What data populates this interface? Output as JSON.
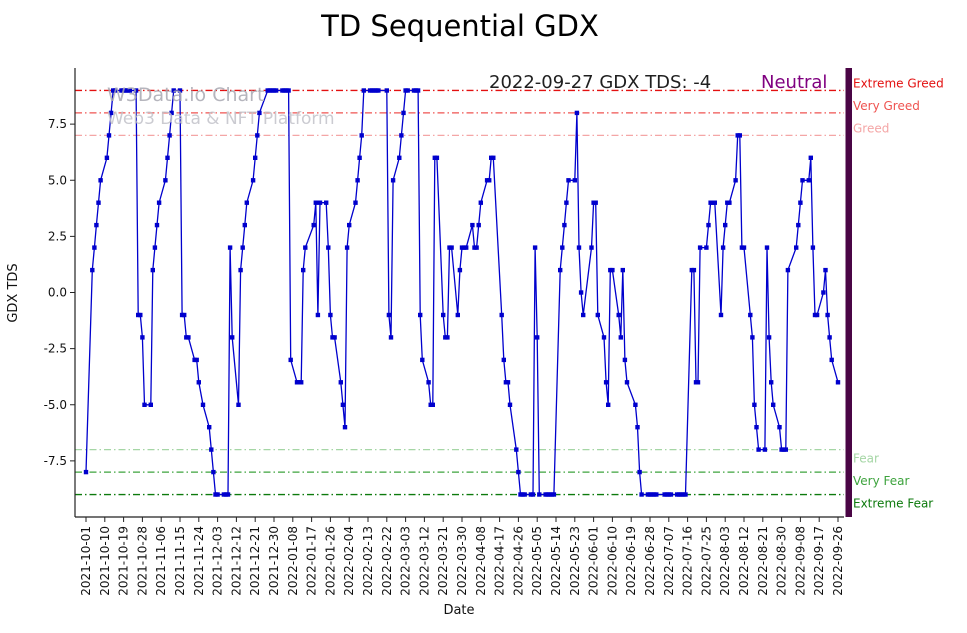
{
  "window": {
    "title": "TD Sequential GDX"
  },
  "annotation": {
    "text": "2022-09-27 GDX TDS: -4",
    "status": "Neutral",
    "status_color": "#800080"
  },
  "watermark": {
    "line1": "W3Data.io Chart",
    "line2": "Web3 Data & NFT Platform"
  },
  "chart_data": {
    "type": "line",
    "title": "TD Sequential GDX",
    "xlabel": "Date",
    "ylabel": "GDX TDS",
    "ylim": [
      -10,
      10
    ],
    "grid": false,
    "legend": "none",
    "line_color": "#0000cd",
    "marker": "square",
    "right_bar_color": "#4a0545",
    "yticks": [
      {
        "v": 7.5,
        "label": "7.5"
      },
      {
        "v": 5.0,
        "label": "5.0"
      },
      {
        "v": 2.5,
        "label": "2.5"
      },
      {
        "v": 0.0,
        "label": "0.0"
      },
      {
        "v": -2.5,
        "label": "-2.5"
      },
      {
        "v": -5.0,
        "label": "-5.0"
      },
      {
        "v": -7.5,
        "label": "-7.5"
      }
    ],
    "x_tick_labels": [
      "2021-10-01",
      "2021-10-10",
      "2021-10-19",
      "2021-10-28",
      "2021-11-06",
      "2021-11-15",
      "2021-11-24",
      "2021-12-03",
      "2021-12-12",
      "2021-12-21",
      "2021-12-30",
      "2022-01-08",
      "2022-01-17",
      "2022-01-26",
      "2022-02-04",
      "2022-02-13",
      "2022-02-22",
      "2022-03-03",
      "2022-03-12",
      "2022-03-21",
      "2022-03-30",
      "2022-04-08",
      "2022-04-17",
      "2022-04-26",
      "2022-05-05",
      "2022-05-14",
      "2022-05-23",
      "2022-06-01",
      "2022-06-10",
      "2022-06-19",
      "2022-06-28",
      "2022-07-07",
      "2022-07-16",
      "2022-07-25",
      "2022-08-03",
      "2022-08-12",
      "2022-08-21",
      "2022-08-30",
      "2022-09-08",
      "2022-09-17",
      "2022-09-26"
    ],
    "thresholds": [
      {
        "value": 9,
        "label": "Extreme Greed",
        "color": "#e31010"
      },
      {
        "value": 8,
        "label": "Very Greed",
        "color": "#ef5350"
      },
      {
        "value": 7,
        "label": "Greed",
        "color": "#f4a6a6"
      },
      {
        "value": -7,
        "label": "Fear",
        "color": "#a5d6a5"
      },
      {
        "value": -8,
        "label": "Very Fear",
        "color": "#3da33d"
      },
      {
        "value": -9,
        "label": "Extreme Fear",
        "color": "#0d7a0d"
      }
    ],
    "series": [
      {
        "name": "GDX TDS",
        "points": [
          [
            "2021-10-01",
            -8
          ],
          [
            "2021-10-04",
            1
          ],
          [
            "2021-10-05",
            2
          ],
          [
            "2021-10-06",
            3
          ],
          [
            "2021-10-07",
            4
          ],
          [
            "2021-10-08",
            5
          ],
          [
            "2021-10-11",
            6
          ],
          [
            "2021-10-12",
            7
          ],
          [
            "2021-10-13",
            8
          ],
          [
            "2021-10-14",
            9
          ],
          [
            "2021-10-15",
            9
          ],
          [
            "2021-10-18",
            9
          ],
          [
            "2021-10-19",
            9
          ],
          [
            "2021-10-20",
            9
          ],
          [
            "2021-10-21",
            9
          ],
          [
            "2021-10-22",
            9
          ],
          [
            "2021-10-25",
            9
          ],
          [
            "2021-10-26",
            -1
          ],
          [
            "2021-10-27",
            -1
          ],
          [
            "2021-10-28",
            -2
          ],
          [
            "2021-10-29",
            -5
          ],
          [
            "2021-11-01",
            -5
          ],
          [
            "2021-11-02",
            1
          ],
          [
            "2021-11-03",
            2
          ],
          [
            "2021-11-04",
            3
          ],
          [
            "2021-11-05",
            4
          ],
          [
            "2021-11-08",
            5
          ],
          [
            "2021-11-09",
            6
          ],
          [
            "2021-11-10",
            7
          ],
          [
            "2021-11-11",
            8
          ],
          [
            "2021-11-12",
            9
          ],
          [
            "2021-11-15",
            9
          ],
          [
            "2021-11-16",
            -1
          ],
          [
            "2021-11-17",
            -1
          ],
          [
            "2021-11-18",
            -2
          ],
          [
            "2021-11-19",
            -2
          ],
          [
            "2021-11-22",
            -3
          ],
          [
            "2021-11-23",
            -3
          ],
          [
            "2021-11-24",
            -4
          ],
          [
            "2021-11-26",
            -5
          ],
          [
            "2021-11-29",
            -6
          ],
          [
            "2021-11-30",
            -7
          ],
          [
            "2021-12-01",
            -8
          ],
          [
            "2021-12-02",
            -9
          ],
          [
            "2021-12-03",
            -9
          ],
          [
            "2021-12-06",
            -9
          ],
          [
            "2021-12-07",
            -9
          ],
          [
            "2021-12-08",
            -9
          ],
          [
            "2021-12-09",
            2
          ],
          [
            "2021-12-10",
            -2
          ],
          [
            "2021-12-13",
            -5
          ],
          [
            "2021-12-14",
            1
          ],
          [
            "2021-12-15",
            2
          ],
          [
            "2021-12-16",
            3
          ],
          [
            "2021-12-17",
            4
          ],
          [
            "2021-12-20",
            5
          ],
          [
            "2021-12-21",
            6
          ],
          [
            "2021-12-22",
            7
          ],
          [
            "2021-12-23",
            8
          ],
          [
            "2021-12-27",
            9
          ],
          [
            "2021-12-28",
            9
          ],
          [
            "2021-12-29",
            9
          ],
          [
            "2021-12-30",
            9
          ],
          [
            "2021-12-31",
            9
          ],
          [
            "2022-01-03",
            9
          ],
          [
            "2022-01-04",
            9
          ],
          [
            "2022-01-05",
            9
          ],
          [
            "2022-01-06",
            9
          ],
          [
            "2022-01-07",
            -3
          ],
          [
            "2022-01-10",
            -4
          ],
          [
            "2022-01-11",
            -4
          ],
          [
            "2022-01-12",
            -4
          ],
          [
            "2022-01-13",
            1
          ],
          [
            "2022-01-14",
            2
          ],
          [
            "2022-01-18",
            3
          ],
          [
            "2022-01-19",
            4
          ],
          [
            "2022-01-20",
            -1
          ],
          [
            "2022-01-21",
            4
          ],
          [
            "2022-01-24",
            4
          ],
          [
            "2022-01-25",
            2
          ],
          [
            "2022-01-26",
            -1
          ],
          [
            "2022-01-27",
            -2
          ],
          [
            "2022-01-28",
            -2
          ],
          [
            "2022-01-31",
            -4
          ],
          [
            "2022-02-01",
            -5
          ],
          [
            "2022-02-02",
            -6
          ],
          [
            "2022-02-03",
            2
          ],
          [
            "2022-02-04",
            3
          ],
          [
            "2022-02-07",
            4
          ],
          [
            "2022-02-08",
            5
          ],
          [
            "2022-02-09",
            6
          ],
          [
            "2022-02-10",
            7
          ],
          [
            "2022-02-11",
            9
          ],
          [
            "2022-02-14",
            9
          ],
          [
            "2022-02-15",
            9
          ],
          [
            "2022-02-16",
            9
          ],
          [
            "2022-02-17",
            9
          ],
          [
            "2022-02-18",
            9
          ],
          [
            "2022-02-22",
            9
          ],
          [
            "2022-02-23",
            -1
          ],
          [
            "2022-02-24",
            -2
          ],
          [
            "2022-02-25",
            5
          ],
          [
            "2022-02-28",
            6
          ],
          [
            "2022-03-01",
            7
          ],
          [
            "2022-03-02",
            8
          ],
          [
            "2022-03-03",
            9
          ],
          [
            "2022-03-04",
            9
          ],
          [
            "2022-03-07",
            9
          ],
          [
            "2022-03-08",
            9
          ],
          [
            "2022-03-09",
            9
          ],
          [
            "2022-03-10",
            -1
          ],
          [
            "2022-03-11",
            -3
          ],
          [
            "2022-03-14",
            -4
          ],
          [
            "2022-03-15",
            -5
          ],
          [
            "2022-03-16",
            -5
          ],
          [
            "2022-03-17",
            6
          ],
          [
            "2022-03-18",
            6
          ],
          [
            "2022-03-21",
            -1
          ],
          [
            "2022-03-22",
            -2
          ],
          [
            "2022-03-23",
            -2
          ],
          [
            "2022-03-24",
            2
          ],
          [
            "2022-03-25",
            2
          ],
          [
            "2022-03-28",
            -1
          ],
          [
            "2022-03-29",
            1
          ],
          [
            "2022-03-30",
            2
          ],
          [
            "2022-03-31",
            2
          ],
          [
            "2022-04-01",
            2
          ],
          [
            "2022-04-04",
            3
          ],
          [
            "2022-04-05",
            2
          ],
          [
            "2022-04-06",
            2
          ],
          [
            "2022-04-07",
            3
          ],
          [
            "2022-04-08",
            4
          ],
          [
            "2022-04-11",
            5
          ],
          [
            "2022-04-12",
            5
          ],
          [
            "2022-04-13",
            6
          ],
          [
            "2022-04-14",
            6
          ],
          [
            "2022-04-18",
            -1
          ],
          [
            "2022-04-19",
            -3
          ],
          [
            "2022-04-20",
            -4
          ],
          [
            "2022-04-21",
            -4
          ],
          [
            "2022-04-22",
            -5
          ],
          [
            "2022-04-25",
            -7
          ],
          [
            "2022-04-26",
            -8
          ],
          [
            "2022-04-27",
            -9
          ],
          [
            "2022-04-28",
            -9
          ],
          [
            "2022-04-29",
            -9
          ],
          [
            "2022-05-02",
            -9
          ],
          [
            "2022-05-03",
            -9
          ],
          [
            "2022-05-04",
            2
          ],
          [
            "2022-05-05",
            -2
          ],
          [
            "2022-05-06",
            -9
          ],
          [
            "2022-05-09",
            -9
          ],
          [
            "2022-05-10",
            -9
          ],
          [
            "2022-05-11",
            -9
          ],
          [
            "2022-05-12",
            -9
          ],
          [
            "2022-05-13",
            -9
          ],
          [
            "2022-05-16",
            1
          ],
          [
            "2022-05-17",
            2
          ],
          [
            "2022-05-18",
            3
          ],
          [
            "2022-05-19",
            4
          ],
          [
            "2022-05-20",
            5
          ],
          [
            "2022-05-23",
            5
          ],
          [
            "2022-05-24",
            8
          ],
          [
            "2022-05-25",
            2
          ],
          [
            "2022-05-26",
            0
          ],
          [
            "2022-05-27",
            -1
          ],
          [
            "2022-05-31",
            2
          ],
          [
            "2022-06-01",
            4
          ],
          [
            "2022-06-02",
            4
          ],
          [
            "2022-06-03",
            -1
          ],
          [
            "2022-06-06",
            -2
          ],
          [
            "2022-06-07",
            -4
          ],
          [
            "2022-06-08",
            -5
          ],
          [
            "2022-06-09",
            1
          ],
          [
            "2022-06-10",
            1
          ],
          [
            "2022-06-13",
            -1
          ],
          [
            "2022-06-14",
            -2
          ],
          [
            "2022-06-15",
            1
          ],
          [
            "2022-06-16",
            -3
          ],
          [
            "2022-06-17",
            -4
          ],
          [
            "2022-06-21",
            -5
          ],
          [
            "2022-06-22",
            -6
          ],
          [
            "2022-06-23",
            -8
          ],
          [
            "2022-06-24",
            -9
          ],
          [
            "2022-06-27",
            -9
          ],
          [
            "2022-06-28",
            -9
          ],
          [
            "2022-06-29",
            -9
          ],
          [
            "2022-06-30",
            -9
          ],
          [
            "2022-07-01",
            -9
          ],
          [
            "2022-07-05",
            -9
          ],
          [
            "2022-07-06",
            -9
          ],
          [
            "2022-07-07",
            -9
          ],
          [
            "2022-07-08",
            -9
          ],
          [
            "2022-07-11",
            -9
          ],
          [
            "2022-07-12",
            -9
          ],
          [
            "2022-07-13",
            -9
          ],
          [
            "2022-07-14",
            -9
          ],
          [
            "2022-07-15",
            -9
          ],
          [
            "2022-07-18",
            1
          ],
          [
            "2022-07-19",
            1
          ],
          [
            "2022-07-20",
            -4
          ],
          [
            "2022-07-21",
            -4
          ],
          [
            "2022-07-22",
            2
          ],
          [
            "2022-07-25",
            2
          ],
          [
            "2022-07-26",
            3
          ],
          [
            "2022-07-27",
            4
          ],
          [
            "2022-07-28",
            4
          ],
          [
            "2022-07-29",
            4
          ],
          [
            "2022-08-01",
            -1
          ],
          [
            "2022-08-02",
            2
          ],
          [
            "2022-08-03",
            3
          ],
          [
            "2022-08-04",
            4
          ],
          [
            "2022-08-05",
            4
          ],
          [
            "2022-08-08",
            5
          ],
          [
            "2022-08-09",
            7
          ],
          [
            "2022-08-10",
            7
          ],
          [
            "2022-08-11",
            2
          ],
          [
            "2022-08-12",
            2
          ],
          [
            "2022-08-15",
            -1
          ],
          [
            "2022-08-16",
            -2
          ],
          [
            "2022-08-17",
            -5
          ],
          [
            "2022-08-18",
            -6
          ],
          [
            "2022-08-19",
            -7
          ],
          [
            "2022-08-22",
            -7
          ],
          [
            "2022-08-23",
            2
          ],
          [
            "2022-08-24",
            -2
          ],
          [
            "2022-08-25",
            -4
          ],
          [
            "2022-08-26",
            -5
          ],
          [
            "2022-08-29",
            -6
          ],
          [
            "2022-08-30",
            -7
          ],
          [
            "2022-08-31",
            -7
          ],
          [
            "2022-09-01",
            -7
          ],
          [
            "2022-09-02",
            1
          ],
          [
            "2022-09-06",
            2
          ],
          [
            "2022-09-07",
            3
          ],
          [
            "2022-09-08",
            4
          ],
          [
            "2022-09-09",
            5
          ],
          [
            "2022-09-12",
            5
          ],
          [
            "2022-09-13",
            6
          ],
          [
            "2022-09-14",
            2
          ],
          [
            "2022-09-15",
            -1
          ],
          [
            "2022-09-16",
            -1
          ],
          [
            "2022-09-19",
            0
          ],
          [
            "2022-09-20",
            1
          ],
          [
            "2022-09-21",
            -1
          ],
          [
            "2022-09-22",
            -2
          ],
          [
            "2022-09-23",
            -3
          ],
          [
            "2022-09-26",
            -4
          ]
        ]
      }
    ]
  }
}
